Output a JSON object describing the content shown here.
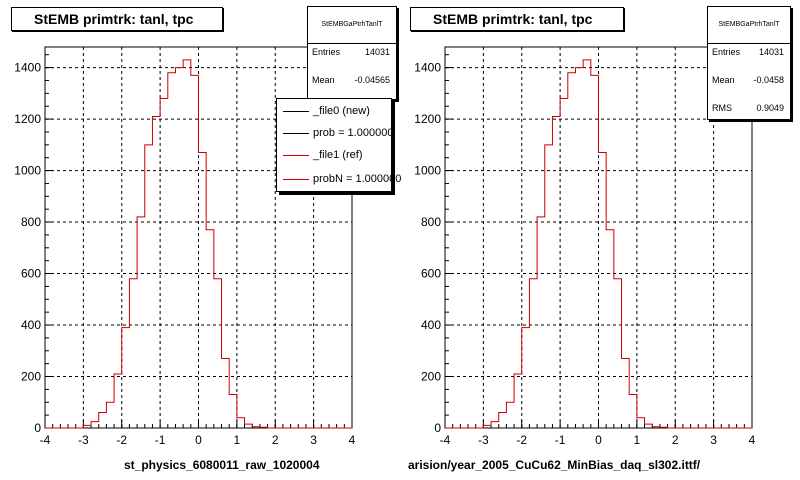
{
  "colors": {
    "ref": "#cc0000",
    "new": "#000000",
    "grid": "#000000",
    "background": "#ffffff"
  },
  "footer": "",
  "chart_data": [
    {
      "type": "histogram",
      "title": "StEMB primtrk: tanl, tpc",
      "xlabel": "st_physics_6080011_raw_1020004",
      "ylabel": "",
      "xlim": [
        -4,
        4
      ],
      "ylim": [
        0,
        1480
      ],
      "xticks": [
        "-4",
        "-3",
        "-2",
        "-1",
        "0",
        "1",
        "2",
        "3",
        "4"
      ],
      "yticks": [
        "0",
        "200",
        "400",
        "600",
        "800",
        "1000",
        "1200",
        "1400"
      ],
      "grid": true,
      "bin_width": 0.2,
      "x_start": -4.0,
      "series": [
        {
          "name": "_file1 (ref)",
          "color": "#cc0000",
          "values": [
            0,
            0,
            0,
            0,
            0,
            10,
            25,
            60,
            100,
            210,
            390,
            580,
            820,
            1100,
            1210,
            1280,
            1380,
            1400,
            1430,
            1370,
            1070,
            770,
            580,
            270,
            130,
            40,
            15,
            5,
            3,
            0,
            0,
            0,
            0,
            0,
            0,
            0,
            0,
            0,
            0,
            0
          ]
        }
      ],
      "stats": {
        "name": "StEMBGaPtrhTanlT",
        "entries_label": "Entries",
        "entries": "14031",
        "mean_label": "Mean",
        "mean": "-0.04565"
      },
      "legend": [
        {
          "label": "_file0 (new)",
          "color": "#000000"
        },
        {
          "label": "prob = 1.000000",
          "color": "#000000"
        },
        {
          "label": "_file1 (ref)",
          "color": "#cc0000"
        },
        {
          "label": "probN = 1.000000",
          "color": "#cc0000"
        }
      ]
    },
    {
      "type": "histogram",
      "title": "StEMB primtrk: tanl, tpc",
      "xlabel": "arision/year_2005_CuCu62_MinBias_daq_sl302.ittf/",
      "ylabel": "",
      "xlim": [
        -4,
        4
      ],
      "ylim": [
        0,
        1480
      ],
      "xticks": [
        "-4",
        "-3",
        "-2",
        "-1",
        "0",
        "1",
        "2",
        "3",
        "4"
      ],
      "yticks": [
        "0",
        "200",
        "400",
        "600",
        "800",
        "1000",
        "1200",
        "1400"
      ],
      "grid": true,
      "bin_width": 0.2,
      "x_start": -4.0,
      "series": [
        {
          "name": "",
          "color": "#cc0000",
          "values": [
            0,
            0,
            0,
            0,
            0,
            10,
            25,
            60,
            100,
            210,
            390,
            580,
            820,
            1100,
            1210,
            1280,
            1380,
            1400,
            1430,
            1370,
            1070,
            770,
            580,
            270,
            130,
            40,
            15,
            5,
            3,
            0,
            0,
            0,
            0,
            0,
            0,
            0,
            0,
            0,
            0,
            0
          ]
        }
      ],
      "stats": {
        "name": "StEMBGaPtrhTanlT",
        "entries_label": "Entries",
        "entries": "14031",
        "mean_label": "Mean",
        "mean": "-0.0458",
        "rms_label": "RMS",
        "rms": "0.9049"
      }
    }
  ]
}
